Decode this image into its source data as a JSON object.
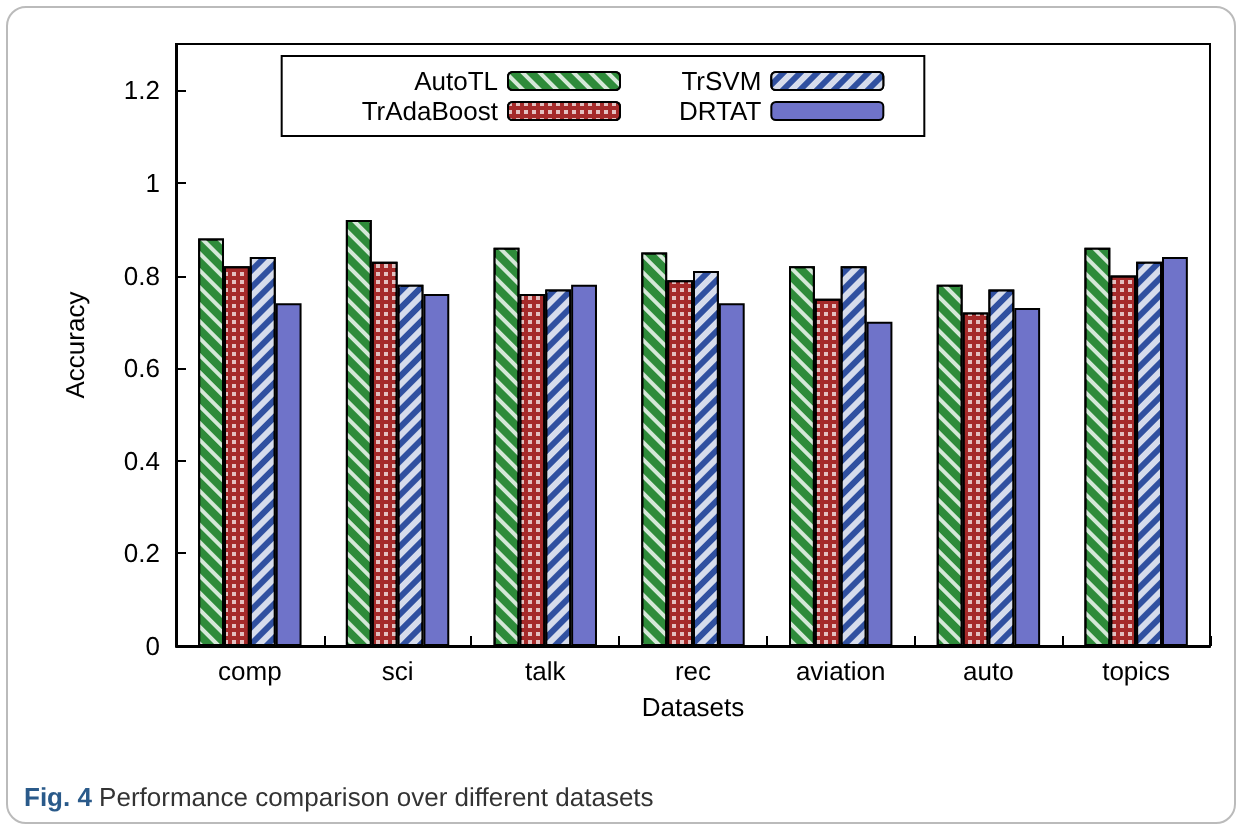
{
  "chart_data": {
    "type": "bar",
    "xlabel": "Datasets",
    "ylabel": "Accuracy",
    "categories": [
      "comp",
      "sci",
      "talk",
      "rec",
      "aviation",
      "auto",
      "topics"
    ],
    "series": [
      {
        "name": "AutoTL",
        "color": "#2e8b3a",
        "values": [
          0.88,
          0.92,
          0.86,
          0.85,
          0.82,
          0.78,
          0.86
        ]
      },
      {
        "name": "TrAdaBoost",
        "color": "#a52a2a",
        "values": [
          0.82,
          0.83,
          0.76,
          0.79,
          0.75,
          0.72,
          0.8
        ]
      },
      {
        "name": "TrSVM",
        "color": "#3050a0",
        "values": [
          0.84,
          0.78,
          0.77,
          0.81,
          0.82,
          0.77,
          0.83
        ]
      },
      {
        "name": "DRTAT",
        "color": "#6f73c9",
        "values": [
          0.74,
          0.76,
          0.78,
          0.74,
          0.7,
          0.73,
          0.84
        ]
      }
    ],
    "ylim": [
      0,
      1.3
    ],
    "yticks": [
      0,
      0.2,
      0.4,
      0.6,
      0.8,
      1,
      1.2
    ],
    "grid": false,
    "legend": "top",
    "annotations": [
      "Fig. 4 Performance comparison over different datasets"
    ]
  }
}
